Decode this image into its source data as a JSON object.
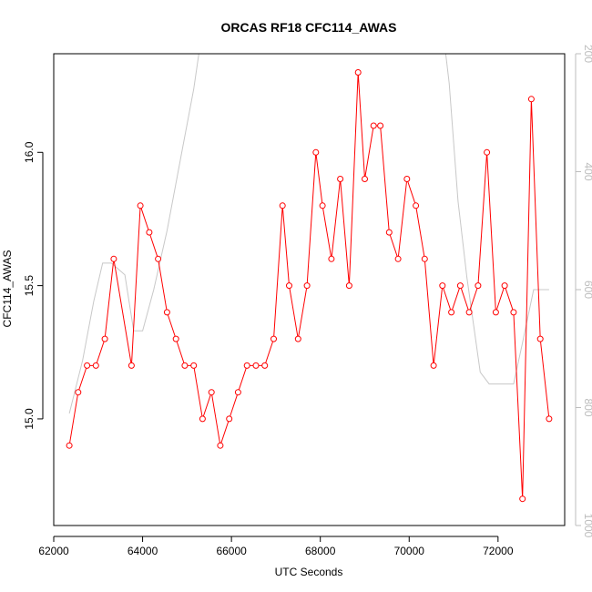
{
  "chart_data": {
    "type": "line",
    "title": "ORCAS RF18 CFC114_AWAS",
    "xlabel": "UTC Seconds",
    "ylabel": "CFC114_AWAS",
    "xlim": [
      62000,
      73500
    ],
    "ylim": [
      14.6,
      16.37
    ],
    "y2lim": [
      200,
      1000
    ],
    "y2_reversed": true,
    "x_ticks": [
      62000,
      64000,
      66000,
      68000,
      70000,
      72000
    ],
    "y_ticks": [
      15.0,
      15.5,
      16.0
    ],
    "y2_ticks": [
      200,
      400,
      600,
      800,
      1000
    ],
    "grid": false,
    "series": [
      {
        "role": "primary",
        "color": "#ff0000",
        "marker": "open-circle",
        "x": [
          62350,
          62550,
          62750,
          62950,
          63150,
          63350,
          63750,
          63950,
          64150,
          64350,
          64550,
          64750,
          64950,
          65150,
          65350,
          65550,
          65750,
          65950,
          66150,
          66350,
          66550,
          66750,
          66950,
          67150,
          67300,
          67500,
          67700,
          67900,
          68050,
          68250,
          68450,
          68650,
          68850,
          69000,
          69200,
          69350,
          69550,
          69750,
          69950,
          70150,
          70350,
          70550,
          70750,
          70950,
          71150,
          71350,
          71550,
          71750,
          71950,
          72150,
          72350,
          72550,
          72750,
          72950,
          73150
        ],
        "y": [
          14.9,
          15.1,
          15.2,
          15.2,
          15.3,
          15.6,
          15.2,
          15.8,
          15.7,
          15.6,
          15.4,
          15.3,
          15.2,
          15.2,
          15.0,
          15.1,
          14.9,
          15.0,
          15.1,
          15.2,
          15.2,
          15.2,
          15.3,
          15.8,
          15.5,
          15.3,
          15.5,
          16.0,
          15.8,
          15.6,
          15.9,
          15.5,
          16.3,
          15.9,
          16.1,
          16.1,
          15.7,
          15.6,
          15.9,
          15.8,
          15.6,
          15.2,
          15.5,
          15.4,
          15.5,
          15.4,
          15.5,
          16.0,
          15.4,
          15.5,
          15.4,
          14.7,
          16.2,
          15.3,
          15.0
        ]
      },
      {
        "role": "secondary-axis",
        "color": "#c8c8c8",
        "marker": "none",
        "x": [
          62350,
          62650,
          62900,
          63100,
          63300,
          63600,
          63800,
          64000,
          64250,
          64550,
          64850,
          65150,
          65400,
          65600,
          65800,
          66050,
          66300,
          66550,
          66800,
          66950,
          67150,
          67400,
          67650,
          67900,
          68150,
          68400,
          68650,
          68900,
          69150,
          69400,
          69650,
          69900,
          70150,
          70400,
          70650,
          70900,
          71100,
          71300,
          71600,
          71800,
          72000,
          72150,
          72350,
          72550,
          72800,
          73150
        ],
        "y": [
          810,
          720,
          620,
          555,
          555,
          575,
          670,
          670,
          600,
          500,
          380,
          260,
          130,
          90,
          90,
          90,
          90,
          90,
          90,
          90,
          90,
          90,
          90,
          90,
          90,
          90,
          90,
          90,
          90,
          90,
          90,
          90,
          90,
          90,
          90,
          250,
          450,
          580,
          740,
          760,
          760,
          760,
          760,
          690,
          600,
          600
        ]
      }
    ]
  }
}
